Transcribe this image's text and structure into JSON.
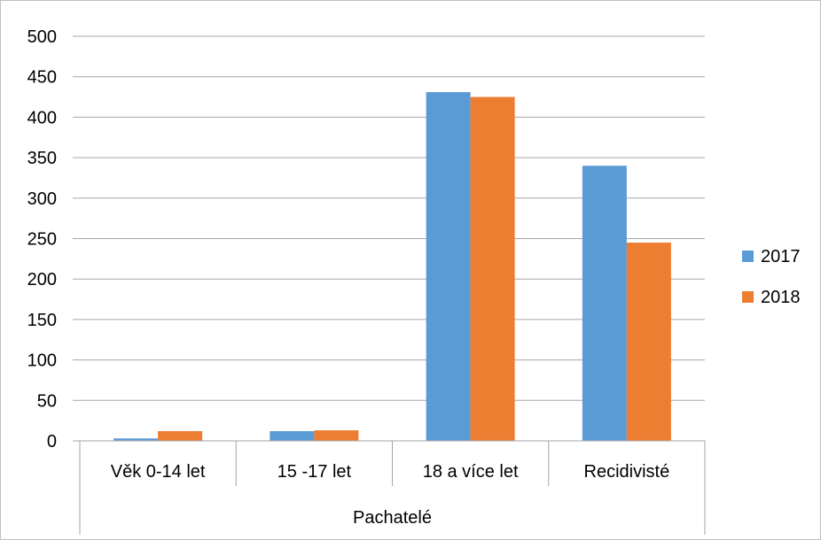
{
  "chart_data": {
    "type": "bar",
    "categories": [
      "Věk 0-14 let",
      "15 -17 let",
      "18 a více let",
      "Recidivisté"
    ],
    "group_label": "Pachatelé",
    "series": [
      {
        "name": "2017",
        "values": [
          3,
          12,
          431,
          340
        ],
        "color": "#5b9bd5"
      },
      {
        "name": "2018",
        "values": [
          12,
          13,
          425,
          245
        ],
        "color": "#ed7d31"
      }
    ],
    "ylim": [
      0,
      500
    ],
    "yticks": [
      "0",
      "50",
      "100",
      "150",
      "200",
      "250",
      "300",
      "350",
      "400",
      "450",
      "500"
    ],
    "grid": true,
    "legend_position": "right"
  }
}
